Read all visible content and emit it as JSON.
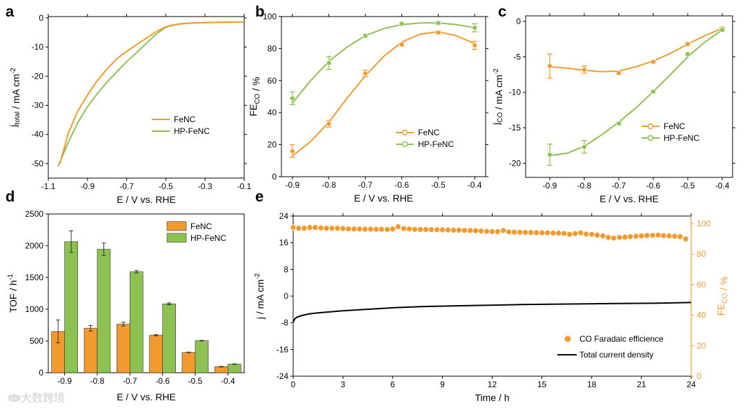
{
  "watermark": "大数跨境",
  "colors": {
    "orange": "#F39A2E",
    "green": "#8DC152",
    "black": "#000000",
    "right_axis": "#F39A2E"
  },
  "chart_data": [
    {
      "panel": "a",
      "type": "line",
      "xlabel": "E / V vs. RHE",
      "ylabel": "j_total / mA cm^-2",
      "xlim": [
        -1.1,
        -0.1
      ],
      "ylim": [
        -55,
        0
      ],
      "xticks": [
        -1.1,
        -0.9,
        -0.7,
        -0.5,
        -0.3,
        -0.1
      ],
      "yticks": [
        0,
        -10,
        -20,
        -30,
        -40,
        -50
      ],
      "legend_position": "center-right",
      "series": [
        {
          "name": "FeNC",
          "color": "#F39A2E",
          "x": [
            -1.04,
            -1.0,
            -0.95,
            -0.9,
            -0.85,
            -0.8,
            -0.75,
            -0.7,
            -0.65,
            -0.6,
            -0.55,
            -0.5,
            -0.45,
            -0.4,
            -0.3,
            -0.2,
            -0.1
          ],
          "y": [
            -50,
            -40,
            -32,
            -26.5,
            -21.5,
            -17.5,
            -14,
            -11.5,
            -9.2,
            -7,
            -4.8,
            -3,
            -2.2,
            -1.8,
            -1.6,
            -1.5,
            -1.4
          ]
        },
        {
          "name": "HP-FeNC",
          "color": "#8DC152",
          "x": [
            -1.05,
            -1.0,
            -0.95,
            -0.9,
            -0.85,
            -0.8,
            -0.75,
            -0.7,
            -0.65,
            -0.6,
            -0.55,
            -0.5,
            -0.45,
            -0.4,
            -0.3,
            -0.2,
            -0.1
          ],
          "y": [
            -51,
            -43,
            -36,
            -30.5,
            -26,
            -22,
            -18.5,
            -15,
            -12,
            -8.7,
            -5.6,
            -3.2,
            -2.3,
            -1.9,
            -1.6,
            -1.5,
            -1.4
          ]
        }
      ]
    },
    {
      "panel": "b",
      "type": "scatter",
      "xlabel": "E / V vs. RHE",
      "ylabel": "FE_CO / %",
      "xlim": [
        -0.93,
        -0.37
      ],
      "ylim": [
        0,
        100
      ],
      "xticks": [
        -0.9,
        -0.8,
        -0.7,
        -0.6,
        -0.5,
        -0.4
      ],
      "yticks": [
        0,
        20,
        40,
        60,
        80,
        100
      ],
      "legend_position": "lower-right",
      "series": [
        {
          "name": "FeNC",
          "color": "#F39A2E",
          "x": [
            -0.9,
            -0.8,
            -0.7,
            -0.6,
            -0.5,
            -0.4
          ],
          "y": [
            16,
            33,
            64.5,
            82.5,
            90,
            82
          ],
          "err": [
            4,
            2,
            2,
            1,
            1,
            2.5
          ],
          "fit_x": [
            -0.9,
            -0.85,
            -0.8,
            -0.75,
            -0.7,
            -0.65,
            -0.6,
            -0.55,
            -0.5,
            -0.45,
            -0.4
          ],
          "fit_y": [
            13,
            22,
            34,
            49,
            63,
            75,
            84,
            89,
            90.5,
            88,
            83
          ]
        },
        {
          "name": "HP-FeNC",
          "color": "#8DC152",
          "x": [
            -0.9,
            -0.8,
            -0.7,
            -0.6,
            -0.5,
            -0.4
          ],
          "y": [
            49,
            71,
            88,
            95.5,
            96,
            93
          ],
          "err": [
            4,
            4,
            1,
            1,
            1,
            2.5
          ],
          "fit_x": [
            -0.9,
            -0.85,
            -0.8,
            -0.75,
            -0.7,
            -0.65,
            -0.6,
            -0.55,
            -0.5,
            -0.45,
            -0.4
          ],
          "fit_y": [
            46,
            60,
            72,
            81,
            88,
            92.5,
            95,
            96,
            96,
            95,
            93
          ]
        }
      ]
    },
    {
      "panel": "c",
      "type": "scatter",
      "xlabel": "E / V vs. RHE",
      "ylabel": "j_CO / mA cm^-2",
      "xlim": [
        -0.97,
        -0.37
      ],
      "ylim": [
        -22,
        0
      ],
      "xticks": [
        -0.9,
        -0.8,
        -0.7,
        -0.6,
        -0.5,
        -0.4
      ],
      "yticks": [
        0,
        -5,
        -10,
        -15,
        -20
      ],
      "legend_position": "center-right",
      "series": [
        {
          "name": "FeNC",
          "color": "#F39A2E",
          "x": [
            -0.9,
            -0.8,
            -0.7,
            -0.6,
            -0.5,
            -0.4
          ],
          "y": [
            -6.3,
            -6.8,
            -7.3,
            -5.7,
            -3.2,
            -1.0
          ],
          "err": [
            1.7,
            0.5,
            0.2,
            0.2,
            0.2,
            0.2
          ],
          "fit_x": [
            -0.9,
            -0.85,
            -0.8,
            -0.75,
            -0.7,
            -0.65,
            -0.6,
            -0.55,
            -0.5,
            -0.45,
            -0.4
          ],
          "fit_y": [
            -6.4,
            -6.6,
            -6.9,
            -7.1,
            -7.0,
            -6.4,
            -5.6,
            -4.5,
            -3.2,
            -2.0,
            -1.0
          ]
        },
        {
          "name": "HP-FeNC",
          "color": "#8DC152",
          "x": [
            -0.9,
            -0.8,
            -0.7,
            -0.6,
            -0.5,
            -0.4
          ],
          "y": [
            -18.8,
            -17.7,
            -14.4,
            -9.9,
            -4.6,
            -1.2
          ],
          "err": [
            1.5,
            0.9,
            0.2,
            0.2,
            0.2,
            0.2
          ],
          "fit_x": [
            -0.9,
            -0.85,
            -0.8,
            -0.75,
            -0.7,
            -0.65,
            -0.6,
            -0.55,
            -0.5,
            -0.45,
            -0.4
          ],
          "fit_y": [
            -18.9,
            -18.6,
            -17.6,
            -16.0,
            -14.2,
            -12.2,
            -9.9,
            -7.5,
            -5.0,
            -2.9,
            -1.2
          ]
        }
      ]
    },
    {
      "panel": "d",
      "type": "bar",
      "xlabel": "E / V vs. RHE",
      "ylabel": "TOF / h^-1",
      "ylim": [
        0,
        2500
      ],
      "yticks": [
        0,
        500,
        1000,
        1500,
        2000,
        2500
      ],
      "categories": [
        "-0.9",
        "-0.8",
        "-0.7",
        "-0.6",
        "-0.5",
        "-0.4"
      ],
      "legend_position": "top-right",
      "series": [
        {
          "name": "FeNC",
          "color": "#F39A2E",
          "values": [
            650,
            700,
            765,
            590,
            320,
            95
          ],
          "err": [
            180,
            45,
            30,
            10,
            5,
            5
          ]
        },
        {
          "name": "HP-FeNC",
          "color": "#8DC152",
          "values": [
            2065,
            1945,
            1590,
            1085,
            505,
            135
          ],
          "err": [
            170,
            100,
            20,
            15,
            5,
            5
          ]
        }
      ]
    },
    {
      "panel": "e",
      "type": "line",
      "xlabel": "Time / h",
      "ylabel": "j / mA cm^-2",
      "y2label": "FE_CO / %",
      "xlim": [
        0,
        24
      ],
      "ylim": [
        -24,
        24
      ],
      "y2lim": [
        0,
        105
      ],
      "xticks": [
        0,
        3,
        6,
        9,
        12,
        15,
        18,
        21,
        24
      ],
      "yticks": [
        24,
        16,
        8,
        0,
        -8,
        -16,
        -24
      ],
      "yticklabels": [
        "24",
        "16",
        "8",
        "0",
        "-8",
        "-16",
        "-24"
      ],
      "y2ticks": [
        0,
        20,
        40,
        60,
        80,
        100
      ],
      "legend_position": "lower-right",
      "series": [
        {
          "name": "CO Faradaic efficience",
          "color": "#F39A2E",
          "marker": "circle",
          "axis": "right",
          "x": [
            0,
            0.33,
            0.67,
            1,
            1.33,
            1.67,
            2,
            2.33,
            2.67,
            3,
            3.33,
            3.67,
            4,
            4.33,
            4.67,
            5,
            5.33,
            5.67,
            6,
            6.33,
            6.67,
            7,
            7.33,
            7.67,
            8,
            8.33,
            8.67,
            9,
            9.33,
            9.67,
            10,
            10.33,
            10.67,
            11,
            11.33,
            11.67,
            12,
            12.33,
            12.67,
            13,
            13.33,
            13.67,
            14,
            14.33,
            14.67,
            15,
            15.33,
            15.67,
            16,
            16.33,
            16.67,
            17,
            17.33,
            17.67,
            18,
            18.33,
            18.67,
            19,
            19.33,
            19.67,
            20,
            20.33,
            20.67,
            21,
            21.33,
            21.67,
            22,
            22.33,
            22.67,
            23,
            23.33,
            23.67
          ],
          "y": [
            97.5,
            97,
            97,
            97.5,
            97.5,
            97.2,
            97,
            97,
            97,
            96.8,
            96.6,
            96.5,
            96.5,
            96.4,
            96.4,
            96.3,
            96.3,
            96.2,
            96.5,
            98,
            96.8,
            96.5,
            96.3,
            96.2,
            96.2,
            96.1,
            96,
            96,
            95.9,
            95.8,
            95.7,
            95.6,
            95.5,
            95.4,
            95.2,
            95,
            94.8,
            94.8,
            95.5,
            94.6,
            94.5,
            94.4,
            94.3,
            94.2,
            94.1,
            94,
            94,
            93.9,
            93.8,
            93.6,
            93,
            93.5,
            94,
            93.2,
            93,
            92.5,
            92,
            91,
            90.5,
            91,
            91.2,
            91.5,
            91.8,
            92,
            92.2,
            92.3,
            92.5,
            92.2,
            92,
            91.8,
            91.5,
            90
          ]
        },
        {
          "name": "Total current density",
          "color": "#000000",
          "axis": "left",
          "x": [
            0,
            0.1,
            0.2,
            0.4,
            0.7,
            1,
            1.5,
            2,
            3,
            4,
            5,
            6,
            7,
            8,
            9,
            10,
            12,
            14,
            16,
            18,
            20,
            22,
            24
          ],
          "y": [
            -7.8,
            -6.8,
            -6.4,
            -6,
            -5.6,
            -5.3,
            -5,
            -4.8,
            -4.4,
            -4.1,
            -3.8,
            -3.5,
            -3.3,
            -3.1,
            -3.0,
            -2.9,
            -2.7,
            -2.5,
            -2.4,
            -2.3,
            -2.2,
            -2.1,
            -1.9
          ]
        }
      ]
    }
  ]
}
